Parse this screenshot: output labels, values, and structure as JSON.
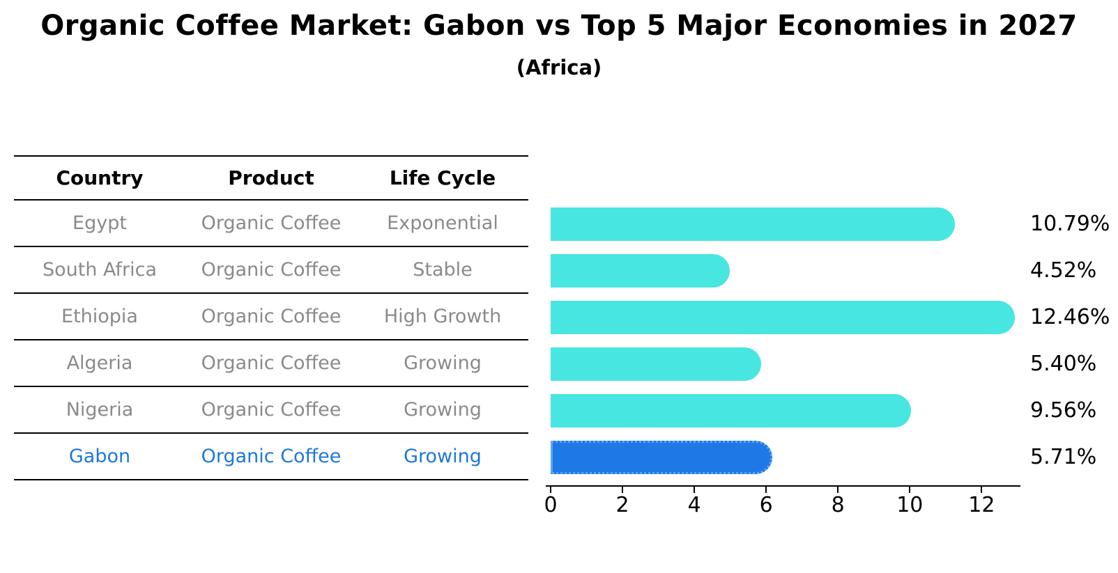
{
  "title": "Organic Coffee Market: Gabon vs Top 5 Major Economies in 2027",
  "subtitle": "(Africa)",
  "table": {
    "headers": {
      "country": "Country",
      "product": "Product",
      "life_cycle": "Life Cycle"
    },
    "rows": [
      {
        "country": "Egypt",
        "product": "Organic Coffee",
        "life_cycle": "Exponential",
        "highlight": false
      },
      {
        "country": "South Africa",
        "product": "Organic Coffee",
        "life_cycle": "Stable",
        "highlight": false
      },
      {
        "country": "Ethiopia",
        "product": "Organic Coffee",
        "life_cycle": "High Growth",
        "highlight": false
      },
      {
        "country": "Algeria",
        "product": "Organic Coffee",
        "life_cycle": "Growing",
        "highlight": false
      },
      {
        "country": "Nigeria",
        "product": "Organic Coffee",
        "life_cycle": "Growing",
        "highlight": false
      },
      {
        "country": "Gabon",
        "product": "Organic Coffee",
        "life_cycle": "Growing",
        "highlight": true
      }
    ]
  },
  "chart_data": {
    "type": "bar",
    "orientation": "horizontal",
    "title": "Organic Coffee Market: Gabon vs Top 5 Major Economies in 2027",
    "subtitle": "(Africa)",
    "categories": [
      "Egypt",
      "South Africa",
      "Ethiopia",
      "Algeria",
      "Nigeria",
      "Gabon"
    ],
    "values": [
      10.79,
      4.52,
      12.46,
      5.4,
      9.56,
      5.71
    ],
    "value_labels": [
      "10.79%",
      "4.52%",
      "12.46%",
      "5.40%",
      "9.56%",
      "5.71%"
    ],
    "highlight_index": 5,
    "x_ticks": [
      0,
      2,
      4,
      6,
      8,
      10,
      12
    ],
    "xlim": [
      0,
      13.08
    ],
    "grid": false,
    "legend": false,
    "bar_color": "#47e6e1",
    "highlight_bar_color": "#1e78e6",
    "highlight_text_color": "#1e78d8"
  }
}
